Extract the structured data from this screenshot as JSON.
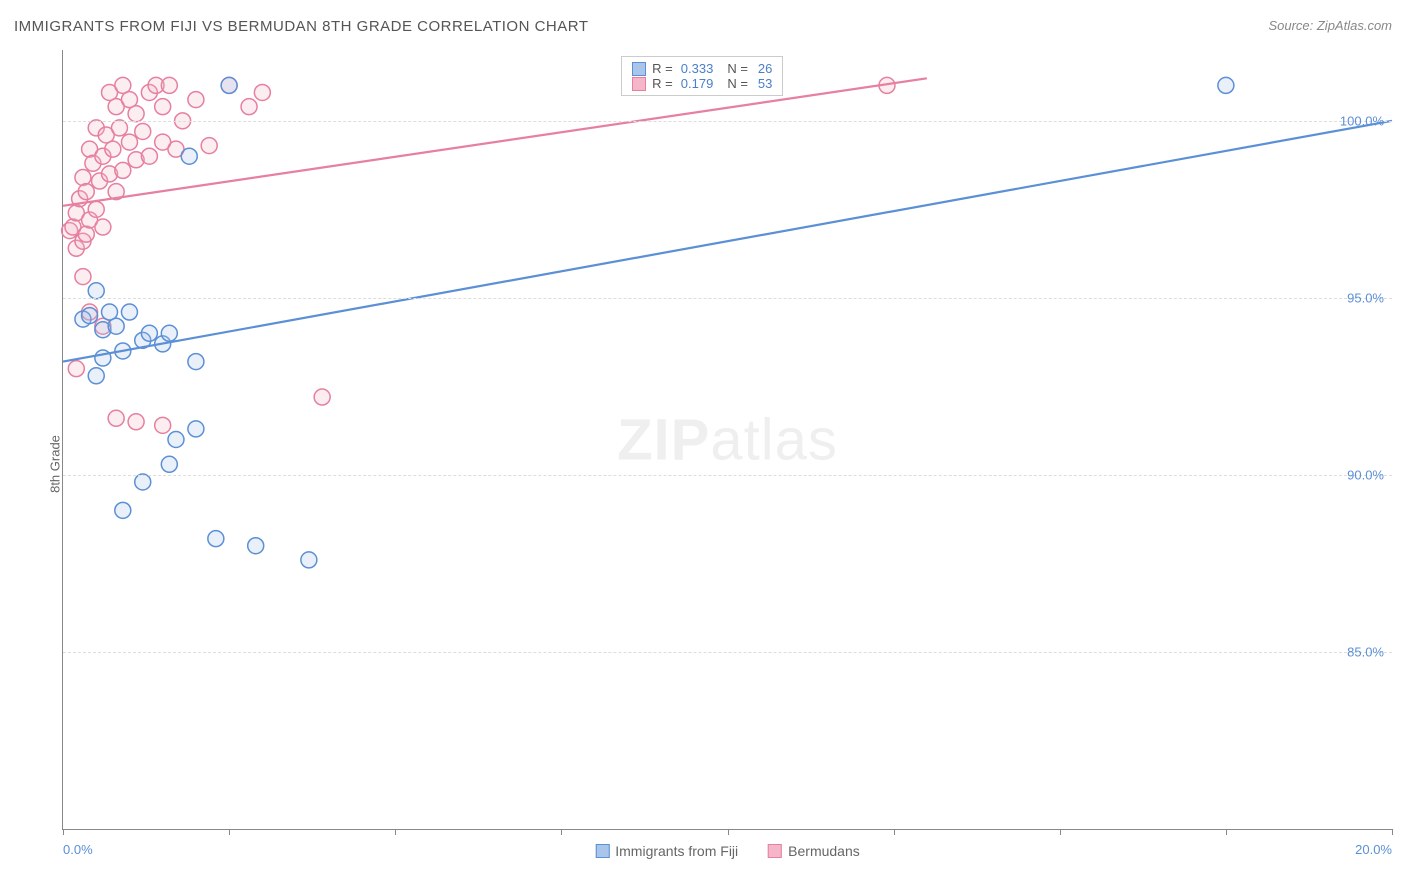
{
  "title": "IMMIGRANTS FROM FIJI VS BERMUDAN 8TH GRADE CORRELATION CHART",
  "source_label": "Source: ZipAtlas.com",
  "watermark_bold": "ZIP",
  "watermark_light": "atlas",
  "ylabel": "8th Grade",
  "chart": {
    "type": "scatter",
    "background_color": "#ffffff",
    "grid_color": "#dddddd",
    "axis_color": "#888888",
    "xlim": [
      0,
      20
    ],
    "ylim": [
      80,
      102
    ],
    "x_ticks": [
      0,
      2.5,
      5,
      7.5,
      10,
      12.5,
      15,
      17.5,
      20
    ],
    "x_tick_labels": {
      "0": "0.0%",
      "20": "20.0%"
    },
    "y_gridlines": [
      85,
      90,
      95,
      100
    ],
    "y_tick_labels": {
      "85": "85.0%",
      "90": "90.0%",
      "95": "95.0%",
      "100": "100.0%"
    },
    "marker_radius": 8,
    "marker_stroke_width": 1.5,
    "marker_fill_opacity": 0.25,
    "line_width": 2.2,
    "series": [
      {
        "key": "fiji",
        "label": "Immigrants from Fiji",
        "color_stroke": "#5b8fd6",
        "color_fill": "#a9c5ea",
        "R": "0.333",
        "N": "26",
        "trend": {
          "x1": 0,
          "y1": 93.2,
          "x2": 20,
          "y2": 100.0
        },
        "points": [
          [
            0.3,
            94.4
          ],
          [
            0.4,
            94.5
          ],
          [
            0.5,
            95.2
          ],
          [
            0.6,
            94.1
          ],
          [
            0.7,
            94.6
          ],
          [
            0.8,
            94.2
          ],
          [
            0.9,
            93.5
          ],
          [
            1.0,
            94.6
          ],
          [
            1.2,
            93.8
          ],
          [
            1.3,
            94.0
          ],
          [
            1.5,
            93.7
          ],
          [
            1.6,
            94.0
          ],
          [
            1.9,
            99.0
          ],
          [
            2.0,
            93.2
          ],
          [
            2.5,
            101.0
          ],
          [
            0.9,
            89.0
          ],
          [
            1.2,
            89.8
          ],
          [
            1.6,
            90.3
          ],
          [
            1.7,
            91.0
          ],
          [
            2.0,
            91.3
          ],
          [
            2.3,
            88.2
          ],
          [
            2.9,
            88.0
          ],
          [
            3.7,
            87.6
          ],
          [
            0.5,
            92.8
          ],
          [
            17.5,
            101.0
          ],
          [
            0.6,
            93.3
          ]
        ]
      },
      {
        "key": "bermudans",
        "label": "Bermudans",
        "color_stroke": "#e67fa0",
        "color_fill": "#f4b6c8",
        "R": "0.179",
        "N": "53",
        "trend": {
          "x1": 0,
          "y1": 97.6,
          "x2": 13.0,
          "y2": 101.2
        },
        "points": [
          [
            0.1,
            96.9
          ],
          [
            0.15,
            97.0
          ],
          [
            0.2,
            96.4
          ],
          [
            0.2,
            97.4
          ],
          [
            0.25,
            97.8
          ],
          [
            0.3,
            96.6
          ],
          [
            0.3,
            98.4
          ],
          [
            0.35,
            98.0
          ],
          [
            0.35,
            96.8
          ],
          [
            0.4,
            97.2
          ],
          [
            0.4,
            99.2
          ],
          [
            0.45,
            98.8
          ],
          [
            0.5,
            97.5
          ],
          [
            0.5,
            99.8
          ],
          [
            0.55,
            98.3
          ],
          [
            0.6,
            99.0
          ],
          [
            0.6,
            97.0
          ],
          [
            0.65,
            99.6
          ],
          [
            0.7,
            98.5
          ],
          [
            0.7,
            100.8
          ],
          [
            0.75,
            99.2
          ],
          [
            0.8,
            100.4
          ],
          [
            0.8,
            98.0
          ],
          [
            0.85,
            99.8
          ],
          [
            0.9,
            101.0
          ],
          [
            0.9,
            98.6
          ],
          [
            1.0,
            99.4
          ],
          [
            1.0,
            100.6
          ],
          [
            1.1,
            98.9
          ],
          [
            1.1,
            100.2
          ],
          [
            1.2,
            99.7
          ],
          [
            1.3,
            100.8
          ],
          [
            1.3,
            99.0
          ],
          [
            1.4,
            101.0
          ],
          [
            1.5,
            99.4
          ],
          [
            1.5,
            100.4
          ],
          [
            1.6,
            101.0
          ],
          [
            1.7,
            99.2
          ],
          [
            1.8,
            100.0
          ],
          [
            2.0,
            100.6
          ],
          [
            2.2,
            99.3
          ],
          [
            2.5,
            101.0
          ],
          [
            2.8,
            100.4
          ],
          [
            3.0,
            100.8
          ],
          [
            0.3,
            95.6
          ],
          [
            0.4,
            94.6
          ],
          [
            0.6,
            94.2
          ],
          [
            0.2,
            93.0
          ],
          [
            0.8,
            91.6
          ],
          [
            1.1,
            91.5
          ],
          [
            1.5,
            91.4
          ],
          [
            3.9,
            92.2
          ],
          [
            12.4,
            101.0
          ]
        ]
      }
    ]
  },
  "stats_legend": {
    "r_label": "R =",
    "n_label": "N ="
  }
}
